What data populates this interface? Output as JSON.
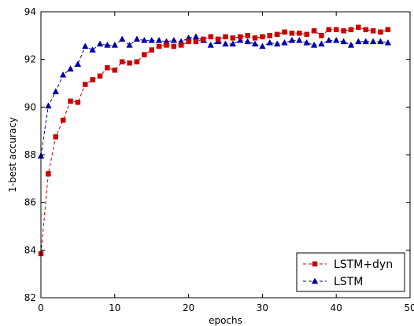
{
  "chart_data": {
    "type": "line",
    "xlabel": "epochs",
    "ylabel": "1-best accuracy",
    "xlim": [
      0,
      50
    ],
    "ylim": [
      82,
      94
    ],
    "xticks": [
      0,
      10,
      20,
      30,
      40,
      50
    ],
    "yticks": [
      82,
      84,
      86,
      88,
      90,
      92,
      94
    ],
    "xtick_labels": [
      "0",
      "10",
      "20",
      "30",
      "40",
      "50"
    ],
    "ytick_labels": [
      "82",
      "84",
      "86",
      "88",
      "90",
      "92",
      "94"
    ],
    "grid": false,
    "legend_position": "lower-right",
    "x": [
      0,
      1,
      2,
      3,
      4,
      5,
      6,
      7,
      8,
      9,
      10,
      11,
      12,
      13,
      14,
      15,
      16,
      17,
      18,
      19,
      20,
      21,
      22,
      23,
      24,
      25,
      26,
      27,
      28,
      29,
      30,
      31,
      32,
      33,
      34,
      35,
      36,
      37,
      38,
      39,
      40,
      41,
      42,
      43,
      44,
      45,
      46,
      47
    ],
    "series": [
      {
        "name": "LSTM+dyn",
        "color": "#cc0000",
        "marker": "square",
        "linestyle": "dashed",
        "values": [
          83.85,
          87.2,
          88.75,
          89.45,
          90.25,
          90.2,
          90.95,
          91.15,
          91.3,
          91.65,
          91.55,
          91.9,
          91.85,
          91.9,
          92.2,
          92.4,
          92.55,
          92.6,
          92.55,
          92.6,
          92.75,
          92.75,
          92.85,
          92.95,
          92.85,
          92.95,
          92.9,
          92.95,
          93.0,
          92.9,
          92.95,
          93.0,
          93.05,
          93.15,
          93.1,
          93.1,
          93.05,
          93.2,
          93.0,
          93.25,
          93.25,
          93.2,
          93.25,
          93.35,
          93.25,
          93.2,
          93.15,
          93.25
        ]
      },
      {
        "name": "LSTM",
        "color": "#0000aa",
        "marker": "triangle",
        "linestyle": "dashed",
        "values": [
          87.95,
          90.05,
          90.65,
          91.35,
          91.6,
          91.8,
          92.55,
          92.4,
          92.65,
          92.6,
          92.6,
          92.85,
          92.6,
          92.85,
          92.8,
          92.8,
          92.8,
          92.75,
          92.8,
          92.75,
          92.9,
          92.95,
          92.8,
          92.6,
          92.75,
          92.65,
          92.65,
          92.8,
          92.75,
          92.65,
          92.55,
          92.7,
          92.65,
          92.7,
          92.8,
          92.8,
          92.7,
          92.6,
          92.65,
          92.8,
          92.8,
          92.75,
          92.6,
          92.75,
          92.75,
          92.75,
          92.75,
          92.7
        ]
      }
    ]
  }
}
